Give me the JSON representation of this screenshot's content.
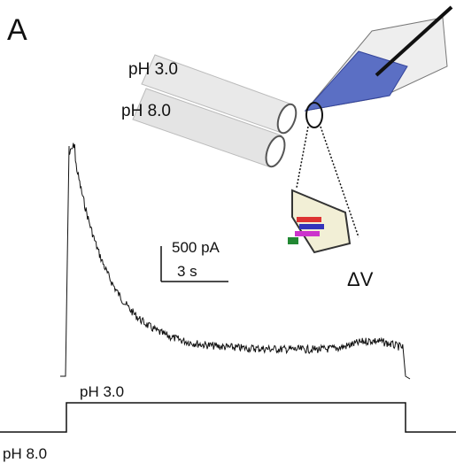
{
  "panel_label": "A",
  "perfusion": {
    "labels": [
      "pH 3.0",
      "pH 8.0"
    ]
  },
  "scale_bar": {
    "current": "500 pA",
    "time": "3 s"
  },
  "membrane_label": "ΔV",
  "protocol": {
    "high_label": "pH 3.0",
    "low_label": "pH 8.0"
  }
}
